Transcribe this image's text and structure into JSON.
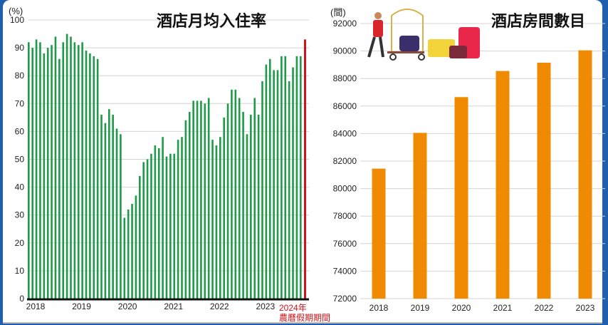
{
  "chart_data": [
    {
      "type": "bar",
      "title": "酒店月均入住率",
      "ylabel": "(%)",
      "ylim": [
        0,
        100
      ],
      "yticks": [
        0,
        10,
        20,
        30,
        40,
        50,
        60,
        70,
        80,
        90,
        100
      ],
      "grid": true,
      "x_tick_labels": [
        "2018",
        "2019",
        "2020",
        "2021",
        "2022",
        "2023"
      ],
      "color": "#1e9a48",
      "values": [
        92,
        90,
        93,
        92,
        88,
        90,
        91,
        94,
        86,
        92,
        95,
        94,
        92,
        91,
        92,
        89,
        88,
        87,
        86,
        66,
        63,
        68,
        66,
        61,
        59,
        29,
        32,
        34,
        37,
        44,
        49,
        50,
        52,
        55,
        54,
        58,
        51,
        52,
        52,
        57,
        58,
        64,
        67,
        71,
        71,
        71,
        70,
        72,
        57,
        55,
        58,
        65,
        70,
        75,
        75,
        72,
        67,
        59,
        66,
        72,
        66,
        78,
        84,
        86,
        82,
        82,
        87,
        87,
        78,
        83,
        87,
        87
      ],
      "highlight": {
        "label": "2024年",
        "sublabel": "農曆假期期間",
        "value": 93,
        "color": "#d0121b"
      }
    },
    {
      "type": "bar",
      "title": "酒店房間數目",
      "ylabel": "(間)",
      "ylim": [
        72000,
        92000
      ],
      "yticks": [
        72000,
        74000,
        76000,
        78000,
        80000,
        82000,
        84000,
        86000,
        88000,
        90000,
        92000
      ],
      "grid": true,
      "categories": [
        "2018",
        "2019",
        "2020",
        "2021",
        "2022",
        "2023"
      ],
      "values": [
        81450,
        84050,
        86650,
        88550,
        89150,
        90050
      ],
      "color": "#f08a00"
    }
  ]
}
